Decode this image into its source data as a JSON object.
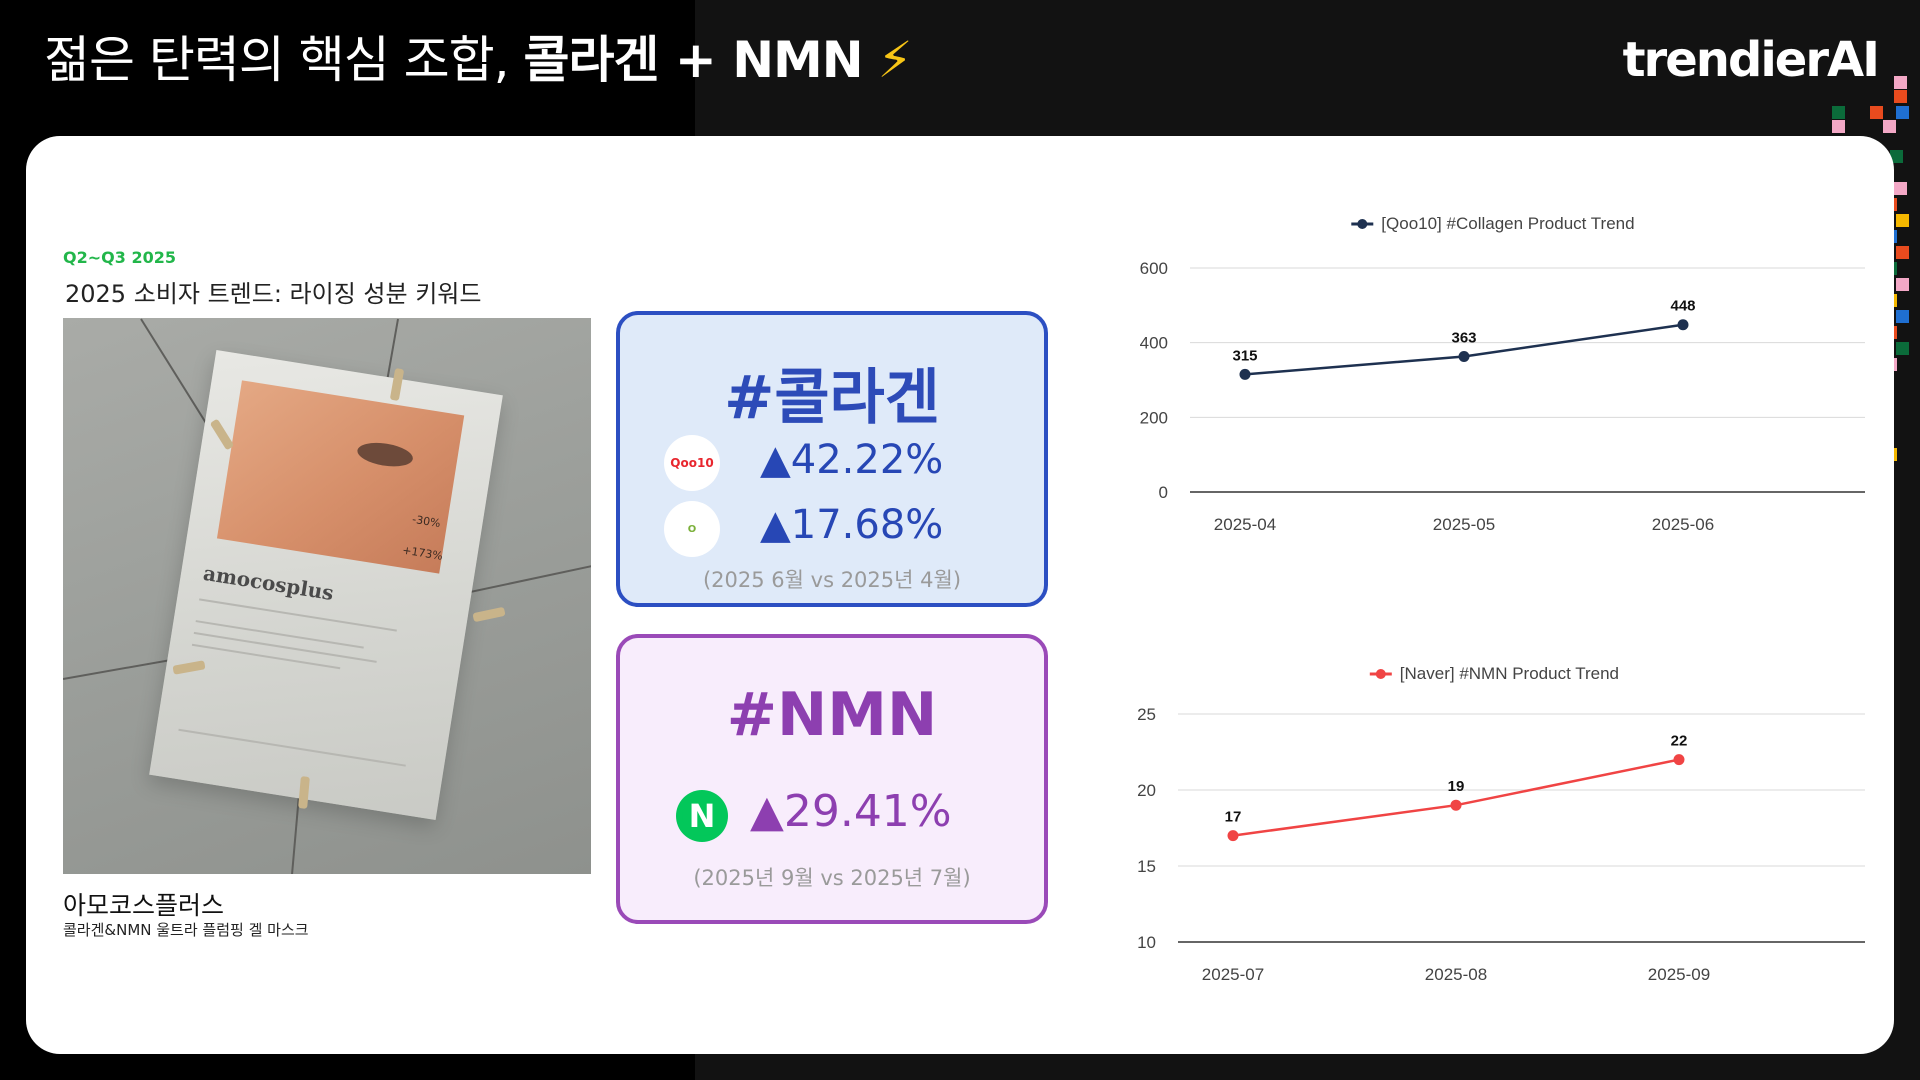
{
  "header": {
    "headline_light": "젊은 탄력의 핵심 조합,",
    "headline_bold": "콜라겐 + NMN",
    "headline_bolt": "⚡",
    "brand": "trendierAI"
  },
  "left": {
    "eyebrow": "Q2~Q3 2025",
    "subhead": "2025 소비자 트렌드: 라이징 성분 키워드",
    "product_brand_on_pack": "amocosplus",
    "pack_stat_1": "-30%",
    "pack_stat_2": "+173%",
    "caption_title": "아모코스플러스",
    "caption_sub": "콜라겐&NMN 울트라 플럼핑 겔 마스크"
  },
  "keywords": [
    {
      "tag": "#콜라겐",
      "rows": [
        {
          "logo": "qoo10-logo",
          "logo_text": "Qoo10",
          "value": "▲42.22%"
        },
        {
          "logo": "oliveyoung-logo",
          "logo_text": "O",
          "value": "▲17.68%"
        }
      ],
      "period": "(2025 6월 vs 2025년 4월)"
    },
    {
      "tag": "#NMN",
      "rows": [
        {
          "logo": "naver-logo",
          "logo_text": "N",
          "value": "▲29.41%"
        }
      ],
      "period": "(2025년 9월 vs 2025년 7월)"
    }
  ],
  "colors": {
    "collagen_accent": "#2c4fc2",
    "nmn_accent": "#9a4ab8",
    "line_qoo10": "#1e3150",
    "line_naver": "#f04444",
    "eyebrow_green": "#22b64a"
  },
  "chart_data": [
    {
      "type": "line",
      "legend": "[Qoo10] #Collagen Product Trend",
      "legend_position": "top-center",
      "categories": [
        "2025-04",
        "2025-05",
        "2025-06"
      ],
      "values": [
        315,
        363,
        448
      ],
      "data_labels": [
        "315",
        "363",
        "448"
      ],
      "ylim": [
        0,
        600
      ],
      "yticks": [
        "0",
        "200",
        "400",
        "600"
      ],
      "ytick_values": [
        0,
        200,
        400,
        600
      ],
      "grid": true,
      "color": "#1e3150"
    },
    {
      "type": "line",
      "legend": "[Naver] #NMN Product Trend",
      "legend_position": "top-center",
      "categories": [
        "2025-07",
        "2025-08",
        "2025-09"
      ],
      "values": [
        17,
        19,
        22
      ],
      "data_labels": [
        "17",
        "19",
        "22"
      ],
      "ylim": [
        10,
        25
      ],
      "yticks": [
        "10",
        "15",
        "20",
        "25"
      ],
      "ytick_values": [
        10,
        15,
        20,
        25
      ],
      "grid": true,
      "color": "#f04444"
    }
  ]
}
